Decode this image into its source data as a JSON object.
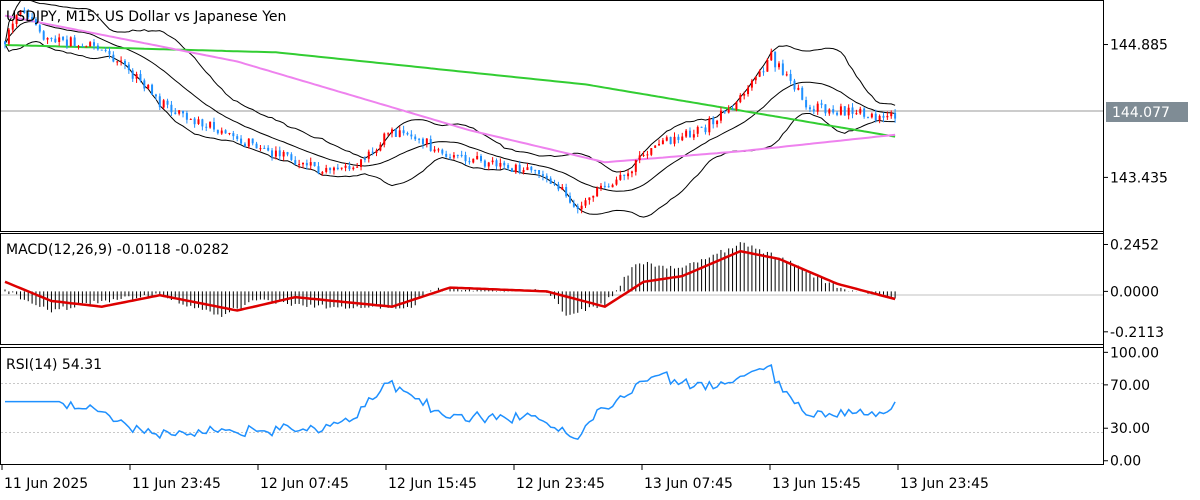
{
  "chart_data": {
    "type": "candlestick",
    "symbol_title": "USDJPY, M15:  US Dollar vs Japanese Yen",
    "current_price": "144.077",
    "price_axis_labels": [
      "144.885",
      "144.077",
      "143.435"
    ],
    "price_range": [
      142.85,
      145.36
    ],
    "time_labels": [
      "11 Jun 2025",
      "11 Jun 23:45",
      "12 Jun 07:45",
      "12 Jun 15:45",
      "12 Jun 23:45",
      "13 Jun 07:45",
      "13 Jun 15:45",
      "13 Jun 23:45"
    ],
    "anchors": [
      {
        "t": 0,
        "p": 144.9
      },
      {
        "t": 4,
        "p": 145.28
      },
      {
        "t": 10,
        "p": 144.95
      },
      {
        "t": 20,
        "p": 144.9
      },
      {
        "t": 30,
        "p": 144.7
      },
      {
        "t": 40,
        "p": 144.25
      },
      {
        "t": 55,
        "p": 143.95
      },
      {
        "t": 70,
        "p": 143.7
      },
      {
        "t": 82,
        "p": 143.5
      },
      {
        "t": 90,
        "p": 143.52
      },
      {
        "t": 100,
        "p": 143.95
      },
      {
        "t": 115,
        "p": 143.7
      },
      {
        "t": 130,
        "p": 143.55
      },
      {
        "t": 140,
        "p": 143.45
      },
      {
        "t": 148,
        "p": 143.1
      },
      {
        "t": 157,
        "p": 143.4
      },
      {
        "t": 170,
        "p": 143.8
      },
      {
        "t": 180,
        "p": 143.95
      },
      {
        "t": 190,
        "p": 144.3
      },
      {
        "t": 198,
        "p": 144.75
      },
      {
        "t": 208,
        "p": 144.2
      },
      {
        "t": 220,
        "p": 144.15
      },
      {
        "t": 225,
        "p": 144.05
      },
      {
        "t": 230,
        "p": 144.1
      }
    ],
    "bollinger_bands": {
      "period": 20,
      "deviation": 2
    },
    "moving_averages": [
      {
        "name": "MA slow",
        "color": "#32cd32",
        "path": [
          [
            0,
            144.88
          ],
          [
            70,
            144.8
          ],
          [
            150,
            144.45
          ],
          [
            230,
            143.88
          ]
        ]
      },
      {
        "name": "MA medium",
        "color": "#ee82ee",
        "path": [
          [
            0,
            145.2
          ],
          [
            60,
            144.7
          ],
          [
            120,
            143.95
          ],
          [
            155,
            143.6
          ],
          [
            190,
            143.72
          ],
          [
            230,
            143.9
          ]
        ]
      }
    ],
    "candle_colors": {
      "bull": "#ff0000",
      "bear": "#1e90ff"
    },
    "macd": {
      "label": "MACD(12,26,9) -0.0118 -0.0282",
      "params": [
        12,
        26,
        9
      ],
      "value": -0.0118,
      "signal": -0.0282,
      "axis_labels": [
        "0.2452",
        "0.0000",
        "-0.2113"
      ],
      "range": [
        -0.275,
        0.3
      ],
      "signal_color": "#dd0000",
      "signal_path": [
        [
          0,
          0.05
        ],
        [
          12,
          -0.05
        ],
        [
          25,
          -0.08
        ],
        [
          40,
          -0.02
        ],
        [
          60,
          -0.1
        ],
        [
          75,
          -0.03
        ],
        [
          100,
          -0.08
        ],
        [
          115,
          0.02
        ],
        [
          140,
          0.0
        ],
        [
          155,
          -0.08
        ],
        [
          165,
          0.05
        ],
        [
          175,
          0.08
        ],
        [
          190,
          0.21
        ],
        [
          200,
          0.17
        ],
        [
          215,
          0.04
        ],
        [
          230,
          -0.04
        ]
      ],
      "hist_path": [
        [
          0,
          0.0
        ],
        [
          12,
          -0.1
        ],
        [
          25,
          -0.05
        ],
        [
          40,
          -0.02
        ],
        [
          55,
          -0.13
        ],
        [
          65,
          -0.05
        ],
        [
          80,
          -0.08
        ],
        [
          105,
          -0.08
        ],
        [
          110,
          0.01
        ],
        [
          140,
          0.0
        ],
        [
          145,
          -0.12
        ],
        [
          155,
          -0.07
        ],
        [
          163,
          0.15
        ],
        [
          175,
          0.12
        ],
        [
          190,
          0.25
        ],
        [
          200,
          0.18
        ],
        [
          215,
          0.02
        ],
        [
          230,
          -0.04
        ]
      ]
    },
    "rsi": {
      "label": "RSI(14) 54.31",
      "period": 14,
      "value": 54.31,
      "axis_labels": [
        "100.00",
        "70.00",
        "30.00",
        "0.00"
      ],
      "range": [
        -3,
        104
      ],
      "color": "#1e90ff"
    }
  }
}
